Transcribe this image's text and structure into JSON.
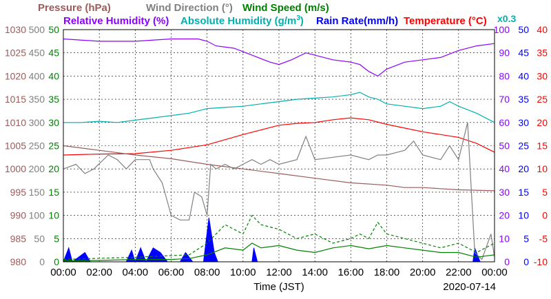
{
  "chart_data": {
    "type": "line",
    "date": "2020-07-14",
    "xlabel": "Time (JST)",
    "x_ticks": [
      "00:00",
      "02:00",
      "04:00",
      "06:00",
      "08:00",
      "10:00",
      "12:00",
      "14:00",
      "16:00",
      "18:00",
      "20:00",
      "22:00",
      "00:00"
    ],
    "grid": true,
    "legend": {
      "pressure": {
        "label": "Pressure (hPa)",
        "color": "#9c5a5a"
      },
      "wind_direction": {
        "label": "Wind Direction (°)",
        "color": "#808080"
      },
      "wind_speed": {
        "label": "Wind Speed (m/s)",
        "color": "#008000"
      },
      "relative_humidity": {
        "label": "Relative Humidity (%)",
        "color": "#8b00ff"
      },
      "absolute_humidity_pre": "Absolute Humidity (g/m",
      "absolute_humidity_sup": "3",
      "absolute_humidity_post": ")",
      "absolute_humidity_color": "#00b0b0",
      "rain_rate": {
        "label": "Rain Rate(mm/h)",
        "color": "#0000ff"
      },
      "temperature": {
        "label": "Temperature (°C)",
        "color": "#ff0000"
      },
      "abs_factor": {
        "label": "x0.3",
        "color": "#00b0b0"
      }
    },
    "axes": {
      "pressure": {
        "ticks": [
          "1030",
          "1025",
          "1020",
          "1015",
          "1010",
          "1005",
          "1000",
          "995",
          "990",
          "985",
          "980"
        ],
        "range": [
          980,
          1030
        ]
      },
      "wind_direction": {
        "ticks": [
          "500",
          "450",
          "400",
          "350",
          "300",
          "250",
          "200",
          "150",
          "100",
          "50",
          "0"
        ],
        "range": [
          0,
          500
        ]
      },
      "wind_speed": {
        "ticks": [
          "50",
          "45",
          "40",
          "35",
          "30",
          "25",
          "20",
          "15",
          "10",
          "5",
          "0"
        ],
        "range": [
          0,
          50
        ]
      },
      "humidity": {
        "ticks": [
          "100",
          "90",
          "80",
          "70",
          "60",
          "50",
          "40",
          "30",
          "20",
          "10",
          "0"
        ],
        "range": [
          0,
          100
        ]
      },
      "rain_rate": {
        "ticks": [
          "50",
          "45",
          "40",
          "35",
          "30",
          "25",
          "20",
          "15",
          "10",
          "5",
          "0"
        ],
        "range": [
          0,
          50
        ]
      },
      "temperature": {
        "ticks": [
          "40",
          "35",
          "30",
          "25",
          "20",
          "15",
          "10",
          "5",
          "0",
          "-5",
          "-10"
        ],
        "range": [
          -10,
          40
        ]
      }
    },
    "series": [
      {
        "key": "relative_humidity",
        "color": "#8b00ff",
        "dash": "",
        "points": [
          [
            0,
            96
          ],
          [
            2,
            95
          ],
          [
            4,
            95
          ],
          [
            6,
            96
          ],
          [
            7.5,
            96
          ],
          [
            8,
            95
          ],
          [
            8.5,
            93
          ],
          [
            9.5,
            92
          ],
          [
            10.5,
            89
          ],
          [
            11.5,
            86
          ],
          [
            12,
            85
          ],
          [
            12.7,
            87
          ],
          [
            13.5,
            90
          ],
          [
            14,
            89
          ],
          [
            15,
            87
          ],
          [
            16,
            86
          ],
          [
            16.5,
            85
          ],
          [
            17,
            82
          ],
          [
            17.5,
            80
          ],
          [
            18,
            83
          ],
          [
            19,
            86
          ],
          [
            20,
            87
          ],
          [
            21,
            88
          ],
          [
            22,
            91
          ],
          [
            23,
            93
          ],
          [
            24,
            94
          ]
        ]
      },
      {
        "key": "temperature",
        "color": "#ff0000",
        "dash": "",
        "points": [
          [
            0,
            13
          ],
          [
            2,
            13.2
          ],
          [
            4,
            13.3
          ],
          [
            6,
            14
          ],
          [
            7,
            14.6
          ],
          [
            8,
            15.2
          ],
          [
            9,
            16.3
          ],
          [
            10,
            17.4
          ],
          [
            11,
            18.4
          ],
          [
            12,
            19.4
          ],
          [
            13,
            19.8
          ],
          [
            14,
            20
          ],
          [
            15,
            20.6
          ],
          [
            16,
            21
          ],
          [
            17,
            20.6
          ],
          [
            18,
            19.6
          ],
          [
            19,
            18.8
          ],
          [
            20,
            18
          ],
          [
            21,
            17.4
          ],
          [
            22,
            16.8
          ],
          [
            23,
            15.5
          ],
          [
            24,
            13.6
          ]
        ]
      },
      {
        "key": "absolute_humidity_x03",
        "color": "#00b0b0",
        "dash": "",
        "points": [
          [
            0,
            60
          ],
          [
            1,
            60
          ],
          [
            2,
            60.5
          ],
          [
            3,
            60
          ],
          [
            4,
            61
          ],
          [
            5,
            62
          ],
          [
            6,
            63
          ],
          [
            7,
            64
          ],
          [
            8,
            66
          ],
          [
            9,
            66.5
          ],
          [
            10,
            67
          ],
          [
            11,
            68
          ],
          [
            12,
            69
          ],
          [
            13,
            70
          ],
          [
            14,
            70.5
          ],
          [
            15,
            71
          ],
          [
            16,
            72
          ],
          [
            16.5,
            73
          ],
          [
            17,
            71
          ],
          [
            17.5,
            70
          ],
          [
            18,
            68
          ],
          [
            19,
            67
          ],
          [
            20,
            66
          ],
          [
            21,
            67
          ],
          [
            21.5,
            69
          ],
          [
            22,
            67
          ],
          [
            23,
            64
          ],
          [
            24,
            60
          ]
        ]
      },
      {
        "key": "pressure",
        "color": "#9c5a5a",
        "dash": "",
        "points": [
          [
            0,
            1005
          ],
          [
            2,
            1004
          ],
          [
            4,
            1003
          ],
          [
            6,
            1002.2
          ],
          [
            8,
            1001
          ],
          [
            10,
            1000
          ],
          [
            12,
            999
          ],
          [
            14,
            998
          ],
          [
            16,
            997
          ],
          [
            18,
            996.5
          ],
          [
            19,
            996
          ],
          [
            20,
            996
          ],
          [
            22,
            995.5
          ],
          [
            24,
            995.3
          ]
        ]
      },
      {
        "key": "wind_direction",
        "color": "#808080",
        "dash": "",
        "points": [
          [
            0,
            200
          ],
          [
            0.7,
            210
          ],
          [
            1.2,
            190
          ],
          [
            1.7,
            200
          ],
          [
            2.5,
            230
          ],
          [
            3,
            220
          ],
          [
            3.5,
            200
          ],
          [
            4,
            220
          ],
          [
            4.8,
            220
          ],
          [
            5,
            200
          ],
          [
            5.5,
            170
          ],
          [
            6,
            100
          ],
          [
            6.5,
            90
          ],
          [
            7,
            90
          ],
          [
            7.3,
            150
          ],
          [
            7.7,
            140
          ],
          [
            8,
            100
          ],
          [
            8.2,
            210
          ],
          [
            8.5,
            200
          ],
          [
            9,
            210
          ],
          [
            9.5,
            200
          ],
          [
            10,
            210
          ],
          [
            10.5,
            220
          ],
          [
            11,
            210
          ],
          [
            11.5,
            220
          ],
          [
            12,
            210
          ],
          [
            13,
            220
          ],
          [
            13.5,
            270
          ],
          [
            14,
            220
          ],
          [
            15,
            225
          ],
          [
            16,
            230
          ],
          [
            17,
            220
          ],
          [
            17.5,
            230
          ],
          [
            18,
            230
          ],
          [
            19,
            240
          ],
          [
            19.5,
            260
          ],
          [
            20,
            230
          ],
          [
            21,
            220
          ],
          [
            21.5,
            250
          ],
          [
            22,
            220
          ],
          [
            22.5,
            300
          ],
          [
            22.9,
            20
          ],
          [
            23.3,
            5
          ],
          [
            23.8,
            60
          ],
          [
            24,
            10
          ]
        ]
      },
      {
        "key": "wind_speed",
        "color": "#008000",
        "dash": "",
        "points": [
          [
            0,
            0.2
          ],
          [
            2,
            0.3
          ],
          [
            4,
            0.5
          ],
          [
            6,
            0.5
          ],
          [
            7,
            0.7
          ],
          [
            8,
            1.5
          ],
          [
            9,
            3
          ],
          [
            10,
            2.5
          ],
          [
            10.5,
            4
          ],
          [
            11,
            3
          ],
          [
            12,
            3.5
          ],
          [
            13,
            2.5
          ],
          [
            14,
            2
          ],
          [
            15,
            3
          ],
          [
            16,
            3.5
          ],
          [
            17,
            2.8
          ],
          [
            18,
            3.5
          ],
          [
            19,
            3
          ],
          [
            20,
            2.5
          ],
          [
            21,
            2
          ],
          [
            22,
            2
          ],
          [
            23,
            1
          ],
          [
            24,
            1.5
          ]
        ]
      },
      {
        "key": "wind_gust",
        "color": "#008000",
        "dash": "4 3",
        "points": [
          [
            0,
            0.5
          ],
          [
            4,
            1
          ],
          [
            7,
            1.5
          ],
          [
            8,
            4
          ],
          [
            9,
            8
          ],
          [
            10,
            6
          ],
          [
            10.5,
            10
          ],
          [
            11,
            8
          ],
          [
            12,
            7
          ],
          [
            13,
            5
          ],
          [
            14,
            6
          ],
          [
            15,
            4
          ],
          [
            16,
            5
          ],
          [
            16.5,
            6
          ],
          [
            17,
            5
          ],
          [
            17.5,
            8.5
          ],
          [
            18,
            6
          ],
          [
            19,
            5
          ],
          [
            20,
            4
          ],
          [
            21,
            3
          ],
          [
            22,
            4
          ],
          [
            23,
            2
          ],
          [
            24,
            4
          ]
        ]
      }
    ],
    "rain_rate": {
      "color": "#0000ff",
      "points": [
        [
          0,
          0
        ],
        [
          0.3,
          3
        ],
        [
          0.5,
          0
        ],
        [
          1.2,
          2
        ],
        [
          1.5,
          0
        ],
        [
          3.5,
          0
        ],
        [
          3.8,
          2.5
        ],
        [
          4,
          0
        ],
        [
          4.3,
          3
        ],
        [
          4.6,
          0
        ],
        [
          5,
          3
        ],
        [
          5.4,
          2
        ],
        [
          5.8,
          0
        ],
        [
          6.5,
          0
        ],
        [
          6.8,
          2
        ],
        [
          7.2,
          0
        ],
        [
          7.8,
          0
        ],
        [
          8.1,
          9.5
        ],
        [
          8.4,
          2
        ],
        [
          8.6,
          0
        ],
        [
          10.5,
          0
        ],
        [
          10.6,
          3
        ],
        [
          10.8,
          0
        ],
        [
          22.8,
          0
        ],
        [
          22.9,
          3
        ],
        [
          23.2,
          0
        ],
        [
          24,
          0
        ]
      ]
    }
  }
}
